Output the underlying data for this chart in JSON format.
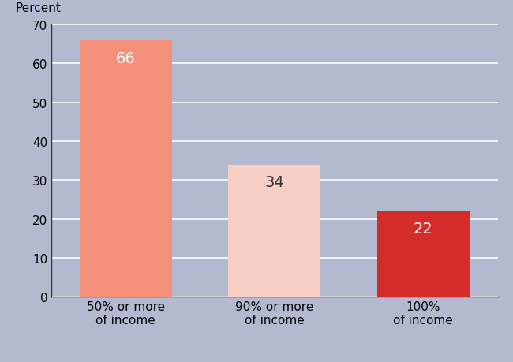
{
  "categories": [
    "50% or more\nof income",
    "90% or more\nof income",
    "100%\nof income"
  ],
  "values": [
    66,
    34,
    22
  ],
  "bar_colors": [
    "#f4907a",
    "#f8cfc4",
    "#d42b2b"
  ],
  "label_colors": [
    "white",
    "#333333",
    "white"
  ],
  "percent_label": "Percent",
  "ylim": [
    0,
    70
  ],
  "yticks": [
    0,
    10,
    20,
    30,
    40,
    50,
    60,
    70
  ],
  "background_color": "#b3bad0",
  "plot_bg_color": "#b3bad0",
  "grid_color": "#ffffff",
  "bar_label_fontsize": 14,
  "tick_label_fontsize": 11,
  "percent_fontsize": 11,
  "left_spine_color": "#333333",
  "bottom_spine_color": "#333333"
}
